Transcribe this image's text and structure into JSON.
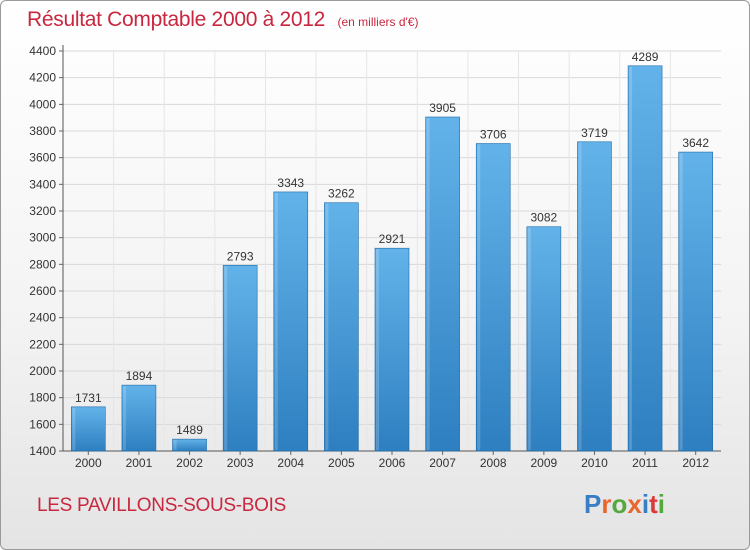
{
  "header": {
    "title": "Résultat Comptable 2000 à 2012",
    "subtitle": "(en milliers d'€)"
  },
  "footer": {
    "commune": "LES PAVILLONS-SOUS-BOIS",
    "brand": "Proxiti",
    "brand_colors": [
      "#3a7fc4",
      "#e8672c",
      "#55a83b",
      "#e8672c",
      "#3a7fc4",
      "#d93a3a",
      "#55a83b"
    ]
  },
  "colors": {
    "bar_top": "#63b3ea",
    "bar_bottom": "#2e7fc0",
    "bar_edge": "#1f6aa8",
    "grid": "#d9d9d9",
    "text": "#333333",
    "accent": "#c8273f"
  },
  "chart_data": {
    "type": "bar",
    "title": "Résultat Comptable 2000 à 2012",
    "subtitle": "(en milliers d'€)",
    "xlabel": "",
    "ylabel": "",
    "categories": [
      "2000",
      "2001",
      "2002",
      "2003",
      "2004",
      "2005",
      "2006",
      "2007",
      "2008",
      "2009",
      "2010",
      "2011",
      "2012"
    ],
    "values": [
      1731,
      1894,
      1489,
      2793,
      3343,
      3262,
      2921,
      3905,
      3706,
      3082,
      3719,
      4289,
      3642
    ],
    "ylim": [
      1400,
      4400
    ],
    "yticks": [
      1400,
      1600,
      1800,
      2000,
      2200,
      2400,
      2600,
      2800,
      3000,
      3200,
      3400,
      3600,
      3800,
      4000,
      4200,
      4400
    ],
    "grid": true,
    "legend": "none"
  }
}
